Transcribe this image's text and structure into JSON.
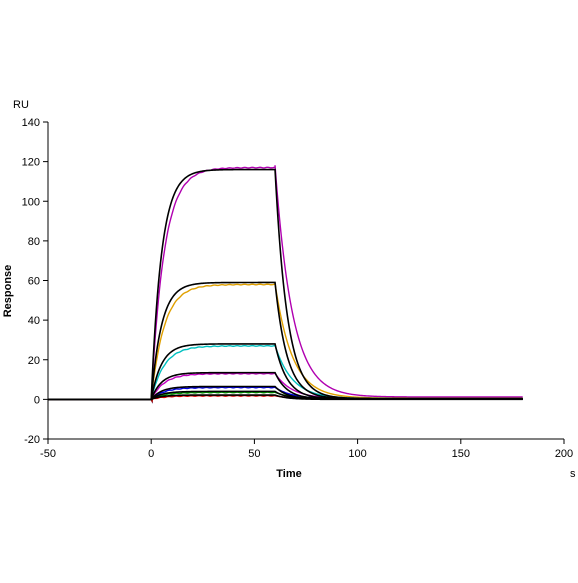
{
  "chart_data": {
    "type": "line",
    "title": "",
    "xlabel": "Time",
    "ylabel": "Response",
    "y_unit": "RU",
    "x_unit": "s",
    "xlim": [
      -50,
      200
    ],
    "ylim": [
      -20,
      140
    ],
    "x_ticks": [
      -50,
      0,
      50,
      100,
      150,
      200
    ],
    "y_ticks": [
      -20,
      0,
      20,
      40,
      60,
      80,
      100,
      120,
      140
    ],
    "grid": false,
    "legend": "none",
    "association_start": 0,
    "dissociation_start": 60,
    "end": 180,
    "series": [
      {
        "color": "#b000b0",
        "plateau": 117,
        "residual": 1.2,
        "kind": "measured"
      },
      {
        "color": "#000000",
        "plateau": 116,
        "residual": 0.4,
        "kind": "fit"
      },
      {
        "color": "#e0a000",
        "plateau": 58,
        "residual": 0.6,
        "kind": "measured"
      },
      {
        "color": "#000000",
        "plateau": 59,
        "residual": 0.3,
        "kind": "fit"
      },
      {
        "color": "#00c0c0",
        "plateau": 27,
        "residual": 0.4,
        "kind": "measured"
      },
      {
        "color": "#000000",
        "plateau": 28,
        "residual": 0.2,
        "kind": "fit"
      },
      {
        "color": "#c000c0",
        "plateau": 13,
        "residual": 0.3,
        "kind": "measured"
      },
      {
        "color": "#000000",
        "plateau": 13.5,
        "residual": 0.1,
        "kind": "fit"
      },
      {
        "color": "#0000e0",
        "plateau": 6,
        "residual": 0.2,
        "kind": "measured"
      },
      {
        "color": "#000000",
        "plateau": 6.5,
        "residual": 0.1,
        "kind": "fit"
      },
      {
        "color": "#00a000",
        "plateau": 3.5,
        "residual": 0.1,
        "kind": "measured"
      },
      {
        "color": "#000000",
        "plateau": 4,
        "residual": 0.1,
        "kind": "fit"
      },
      {
        "color": "#e00000",
        "plateau": 1.8,
        "residual": 0.1,
        "kind": "measured"
      },
      {
        "color": "#000000",
        "plateau": 2.2,
        "residual": 0.0,
        "kind": "fit"
      }
    ]
  }
}
